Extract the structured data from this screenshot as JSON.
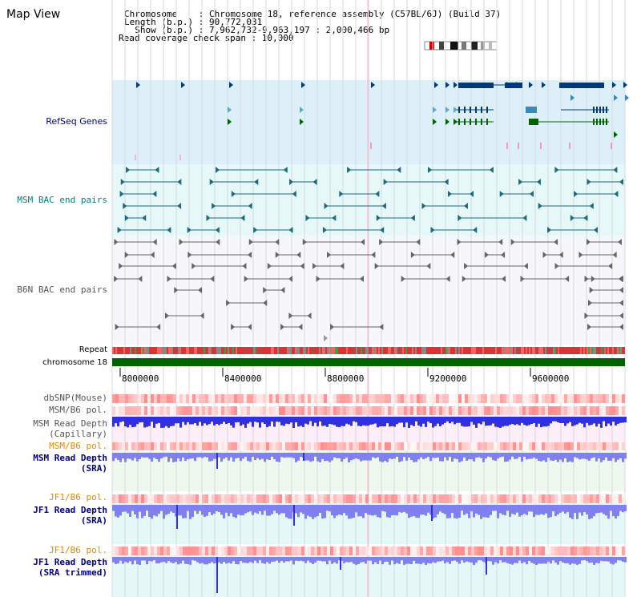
{
  "page": {
    "title": "Map View"
  },
  "info": {
    "line1": "Chromosome    : Chromosome 18, reference assembly (C57BL/6J) (Build 37)",
    "line2": "Length (b.p.) : 90,772,031",
    "line3": "  Show (b.p.) : 7,962,732-9,963,197 : 2,000,466 bp",
    "line4": "Read coverage check span : 10,000"
  },
  "tracks": {
    "refseq": "RefSeq Genes",
    "msm_bac": "MSM BAC end pairs",
    "b6n_bac": "B6N BAC end pairs",
    "repeat": "Repeat",
    "chromosome": "chromosome 18",
    "dbsnp": "dbSNP(Mouse)",
    "msm_b6_pol_1": "MSM/B6 pol.",
    "msm_depth_cap_1": "MSM Read Depth",
    "msm_depth_cap_2": "(Capillary)",
    "msm_b6_pol_2": "MSM/B6 pol.",
    "msm_depth_sra_1": "MSM Read Depth",
    "msm_depth_sra_2": "(SRA)",
    "jf1_b6_pol_1": "JF1/B6 pol.",
    "jf1_depth_sra_1": "JF1 Read Depth",
    "jf1_depth_sra_2": "(SRA)",
    "jf1_b6_pol_2": "JF1/B6 pol.",
    "jf1_depth_trim_1": "JF1 Read Depth",
    "jf1_depth_trim_2": "(SRA trimmed)"
  },
  "axis": {
    "ticks": [
      "8000000",
      "8400000",
      "8800000",
      "9200000",
      "9600000"
    ]
  },
  "colors": {
    "refseq_bg": "#ddf0fa",
    "msm_bg": "#e6f8f8",
    "b6n_bg": "#f6f6fb",
    "gene_navy": "#003a7a",
    "gene_green": "#006400",
    "bac_teal": "#1a6a80",
    "bac_gray": "#666666",
    "chrom_green": "#006400",
    "depth_blue": "#3030e0",
    "depth_light": "#8080f0",
    "pol_red": "#ff4040",
    "label_orange": "#e08a00",
    "label_navy": "#000080",
    "label_teal": "#008080"
  },
  "icons": {
    "ideogram": "chromosome-ideogram-icon",
    "gene_arrow": "triangle-right-icon",
    "bac_arrow": "triangle-left-icon"
  }
}
